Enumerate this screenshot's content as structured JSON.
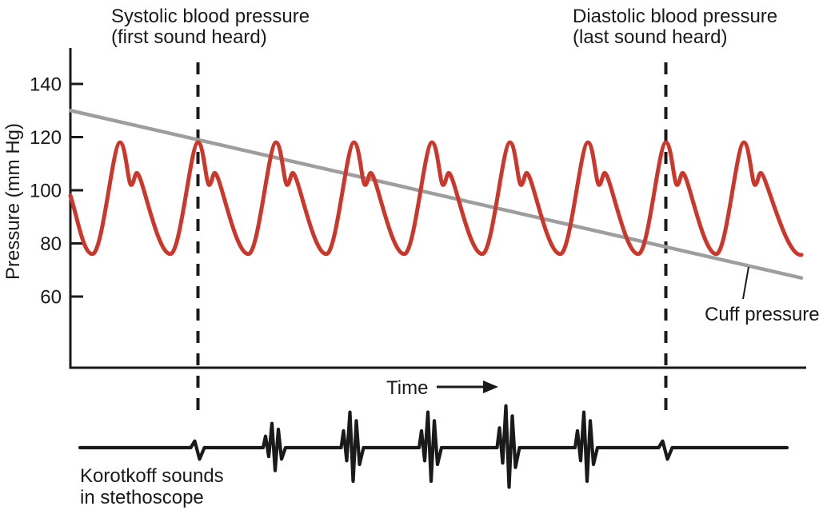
{
  "colors": {
    "pulse": "#cc372b",
    "cuff": "#9e9e9e",
    "ink": "#1a1a1a",
    "background": "#ffffff"
  },
  "chart_data": {
    "type": "line",
    "title": "",
    "xlabel": "Time",
    "ylabel": "Pressure (mm Hg)",
    "axis": {
      "yticks": [
        140,
        120,
        100,
        80,
        60
      ],
      "ylim": [
        45,
        150
      ],
      "x_axis_unlabeled": true,
      "grid": false
    },
    "series": [
      {
        "key": "cuff",
        "name": "Cuff pressure",
        "label": "Cuff pressure",
        "type": "straight-declining-line",
        "start_mmHg": 130,
        "end_mmHg": 67
      },
      {
        "key": "pulse",
        "name": "Arterial pressure pulses",
        "type": "oscillation",
        "num_pulses": 9,
        "systolic_peak_mmHg": 118,
        "dicrotic_dip_mmHg": 102,
        "dicrotic_bump_mmHg": 106.5,
        "diastolic_trough_mmHg": 76,
        "start_value_mmHg": 98
      },
      {
        "key": "korotkoff",
        "name": "Korotkoff sounds",
        "label_line1": "Korotkoff sounds",
        "label_line2": "in stethoscope",
        "type": "sound-bursts",
        "at_pulses": [
          2,
          3,
          4,
          5,
          6,
          7,
          8
        ],
        "relative_amplitudes": [
          0.25,
          0.58,
          0.85,
          0.85,
          1.0,
          0.85,
          0.25
        ]
      }
    ],
    "annotations": [
      {
        "label_line1": "Systolic blood pressure",
        "label_line2": "(first sound heard)",
        "at_pulse": 2,
        "approx_pressure_mmHg": 120,
        "marker": "vertical-dashed-line"
      },
      {
        "label_line1": "Diastolic blood pressure",
        "label_line2": "(last sound heard)",
        "at_pulse": 8,
        "approx_pressure_mmHg": 80,
        "marker": "vertical-dashed-line"
      }
    ]
  }
}
